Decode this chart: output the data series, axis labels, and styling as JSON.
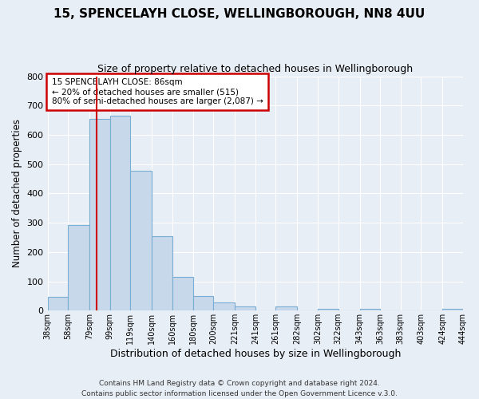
{
  "title": "15, SPENCELAYH CLOSE, WELLINGBOROUGH, NN8 4UU",
  "subtitle": "Size of property relative to detached houses in Wellingborough",
  "xlabel": "Distribution of detached houses by size in Wellingborough",
  "ylabel": "Number of detached properties",
  "bar_values": [
    47,
    293,
    655,
    665,
    478,
    253,
    114,
    49,
    28,
    14,
    0,
    14,
    0,
    7,
    0,
    7,
    0,
    0,
    0,
    7
  ],
  "bin_labels": [
    "38sqm",
    "58sqm",
    "79sqm",
    "99sqm",
    "119sqm",
    "140sqm",
    "160sqm",
    "180sqm",
    "200sqm",
    "221sqm",
    "241sqm",
    "261sqm",
    "282sqm",
    "302sqm",
    "322sqm",
    "343sqm",
    "363sqm",
    "383sqm",
    "403sqm",
    "424sqm",
    "444sqm"
  ],
  "bar_left_edges": [
    38,
    58,
    79,
    99,
    119,
    140,
    160,
    180,
    200,
    221,
    241,
    261,
    282,
    302,
    322,
    343,
    363,
    383,
    403,
    424
  ],
  "bar_widths": [
    20,
    21,
    20,
    20,
    21,
    20,
    20,
    20,
    21,
    20,
    20,
    21,
    20,
    20,
    21,
    20,
    20,
    20,
    21,
    20
  ],
  "bar_color": "#c8d8eb",
  "bar_edge_color": "#7aadd4",
  "vline_x": 86,
  "vline_color": "#cc0000",
  "annotation_title": "15 SPENCELAYH CLOSE: 86sqm",
  "annotation_line1": "← 20% of detached houses are smaller (515)",
  "annotation_line2": "80% of semi-detached houses are larger (2,087) →",
  "annotation_box_color": "#cc0000",
  "ylim": [
    0,
    800
  ],
  "yticks": [
    0,
    100,
    200,
    300,
    400,
    500,
    600,
    700,
    800
  ],
  "footer1": "Contains HM Land Registry data © Crown copyright and database right 2024.",
  "footer2": "Contains public sector information licensed under the Open Government Licence v.3.0.",
  "background_color": "#e8eef5",
  "plot_bg_color": "#e8eef5",
  "grid_color": "#ffffff",
  "title_fontsize": 11,
  "subtitle_fontsize": 9
}
